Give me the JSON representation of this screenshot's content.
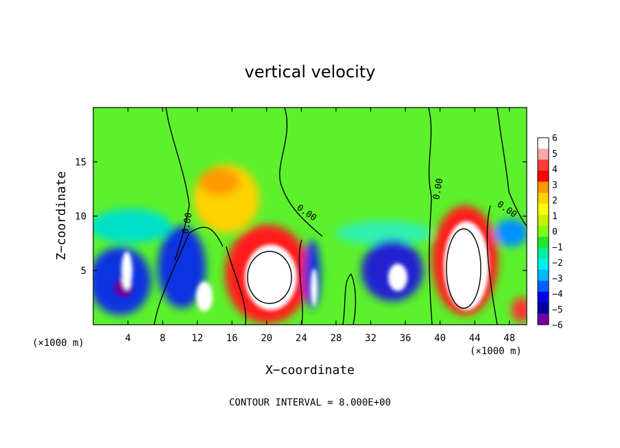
{
  "chart_data": {
    "type": "heatmap",
    "title": "vertical velocity",
    "xlabel": "X−coordinate",
    "ylabel": "Z−coordinate",
    "x_unit_left": "(×1000 m)",
    "x_unit_right": "(×1000 m)",
    "footer": "CONTOUR INTERVAL = 8.000E+00",
    "xlim": [
      0,
      50
    ],
    "ylim": [
      0,
      20
    ],
    "x_ticks": [
      4,
      8,
      12,
      16,
      20,
      24,
      28,
      32,
      36,
      40,
      44,
      48
    ],
    "y_ticks": [
      5,
      10,
      15
    ],
    "colorbar": {
      "labels": [
        "6",
        "5",
        "4",
        "3",
        "2",
        "1",
        "0",
        "−1",
        "−2",
        "−3",
        "−4",
        "−5",
        "−6"
      ],
      "colors": [
        "#ffffff",
        "#f7a8a8",
        "#ff3a3a",
        "#ff0000",
        "#ff9a00",
        "#ffd200",
        "#ffff00",
        "#c8f000",
        "#80ff10",
        "#20e828",
        "#00f0a0",
        "#00f0f0",
        "#00b8ff",
        "#0060ff",
        "#0000e8",
        "#0000a0",
        "#7000a0"
      ]
    },
    "contour_labels": [
      "0.00",
      "0.00",
      "0.00",
      "0.00"
    ],
    "features": [
      {
        "x": 20.5,
        "z": 5.0,
        "w": 7,
        "kind": "updraft"
      },
      {
        "x": 42.0,
        "z": 6.0,
        "w": 7,
        "kind": "updraft"
      },
      {
        "x": 17.0,
        "z": 11.5,
        "w": 2.5,
        "kind": "updraft"
      },
      {
        "x": 4.0,
        "z": 4.0,
        "w": -5.5,
        "kind": "downdraft"
      },
      {
        "x": 12.0,
        "z": 4.5,
        "w": -5.5,
        "kind": "downdraft"
      },
      {
        "x": 25.5,
        "z": 4.0,
        "w": -5,
        "kind": "downdraft"
      },
      {
        "x": 34.5,
        "z": 4.0,
        "w": -5.5,
        "kind": "downdraft"
      }
    ]
  }
}
